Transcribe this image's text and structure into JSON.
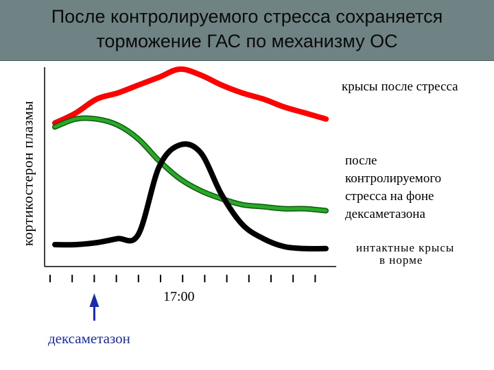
{
  "title_lines": [
    "После контролируемого стресса сохраняется",
    "торможение ГАС по механизму ОС"
  ],
  "chart_data": {
    "type": "line",
    "title": "После контролируемого стресса сохраняется торможение ГАС по механизму ОС",
    "ylabel": "кортикостерон плазмы",
    "xlabel": "",
    "x_tick_count": 13,
    "x_tick_label": {
      "index": 6,
      "text": "17:00"
    },
    "x": [
      0,
      1,
      2,
      3,
      4,
      5,
      6,
      7,
      8,
      9,
      10,
      11,
      12,
      13
    ],
    "ylim": [
      0,
      100
    ],
    "grid": false,
    "series": [
      {
        "name": "крысы после стресса",
        "color": "#ff0000",
        "values": [
          72,
          77,
          84,
          87,
          91,
          95,
          99,
          96,
          91,
          87,
          84,
          80,
          77,
          74
        ]
      },
      {
        "name": "после контролируемого стресса на фоне дексаметазона",
        "color": "#0f8a0f",
        "values": [
          70,
          74,
          74,
          71,
          64,
          53,
          44,
          38,
          34,
          31,
          30,
          29,
          29,
          28
        ]
      },
      {
        "name": "интактные крысы в норме",
        "color": "#000000",
        "values": [
          11,
          11,
          12,
          14,
          16,
          50,
          61,
          57,
          36,
          21,
          14,
          10,
          9,
          9
        ]
      }
    ],
    "labels": {
      "s1": "крысы после стресса",
      "s2": [
        "после",
        "контролируемого",
        "стресса на фоне",
        "дексаметазона"
      ],
      "s3_line1": "интактные крысы",
      "s3_line2": "в норме"
    },
    "marker": {
      "tick_index": 2,
      "text": "дексаметазон",
      "color": "#1a2bb0"
    }
  }
}
